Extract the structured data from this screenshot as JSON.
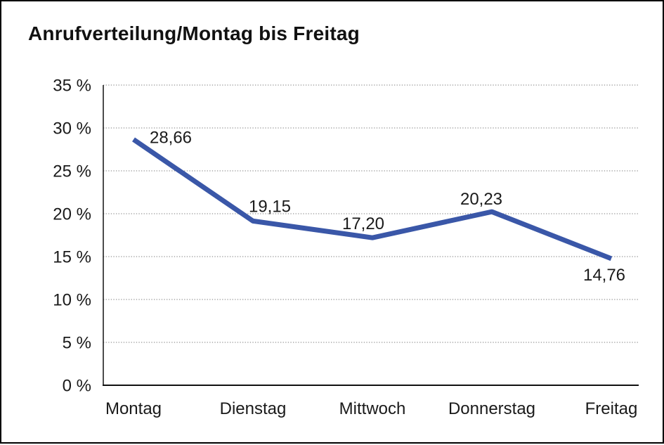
{
  "chart_data": {
    "type": "line",
    "title": "Anrufverteilung/Montag bis Freitag",
    "categories": [
      "Montag",
      "Dienstag",
      "Mittwoch",
      "Donnerstag",
      "Freitag"
    ],
    "values": [
      28.66,
      19.15,
      17.2,
      20.23,
      14.76
    ],
    "value_labels": [
      "28,66",
      "19,15",
      "17,20",
      "20,23",
      "14,76"
    ],
    "y_tick_labels": [
      "0 %",
      "5 %",
      "10 %",
      "15 %",
      "20 %",
      "25 %",
      "30 %",
      "35 %"
    ],
    "ylim": [
      0,
      35
    ],
    "y_tick_step": 5,
    "xlabel": "",
    "ylabel": "",
    "grid": "horizontal-dotted",
    "legend": "none",
    "colors": {
      "line": "#3a57a8",
      "axis": "#111111",
      "grid": "#7a7a7a",
      "text": "#1a1a1a",
      "background": "#ffffff",
      "frame_border": "#000000"
    }
  }
}
